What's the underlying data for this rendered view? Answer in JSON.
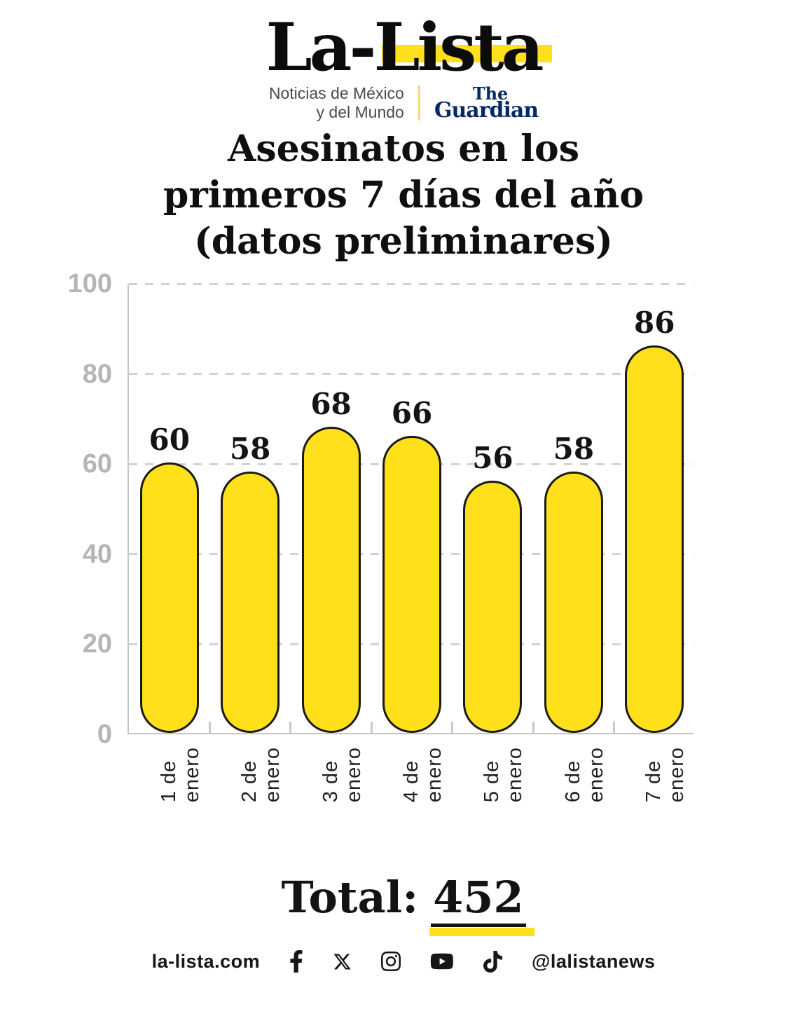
{
  "brand": {
    "wordmark": "La-Lista",
    "tagline_line1": "Noticias de México",
    "tagline_line2": "y del Mundo",
    "partner_the": "The",
    "partner_guardian": "Guardian"
  },
  "title_lines": [
    "Asesinatos en los",
    "primeros 7 días del año",
    "(datos preliminares)"
  ],
  "chart_data": {
    "type": "bar",
    "title": "Asesinatos en los primeros 7 días del año (datos preliminares)",
    "categories": [
      "1 de enero",
      "2 de enero",
      "3 de enero",
      "4 de enero",
      "5 de enero",
      "6 de enero",
      "7 de enero"
    ],
    "values": [
      60,
      58,
      68,
      66,
      56,
      58,
      86
    ],
    "xlabel": "",
    "ylabel": "",
    "ylim": [
      0,
      100
    ],
    "yticks": [
      0,
      20,
      40,
      60,
      80,
      100
    ],
    "grid": "horizontal dashed",
    "legend": "none",
    "bar_color": "#FFE01A",
    "bar_border_color": "#1A1A1A"
  },
  "total": {
    "label": "Total:",
    "value": "452"
  },
  "footer": {
    "website": "la-lista.com",
    "handle": "@lalistanews",
    "icons": [
      "facebook-icon",
      "x-icon",
      "instagram-icon",
      "youtube-icon",
      "tiktok-icon"
    ]
  },
  "colors": {
    "accent_yellow": "#FFE01A",
    "guardian_navy": "#052962",
    "axis_gray": "#C6C6C6",
    "grid_gray": "#D2D2D2",
    "y_tick_gray": "#B5B5B5",
    "text_black": "#131313"
  }
}
